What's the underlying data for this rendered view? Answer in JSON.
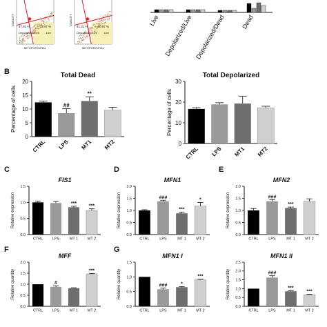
{
  "panel_letters": [
    "B",
    "C",
    "D",
    "E",
    "F",
    "G"
  ],
  "flow_plots": [
    {
      "y_axis_label": "VIABILITY",
      "x_axis_label": "MITOPOTENTIAL",
      "gate_labels": [
        "47.81 %",
        "73.47 %",
        "Depolarized/Live",
        "Live"
      ]
    },
    {
      "y_axis_label": "VIABILITY",
      "x_axis_label": "MITOPOTENTIAL",
      "gate_labels": [
        "41.31 %",
        "60.87 %",
        "Depolarized/Live",
        "Live"
      ]
    }
  ],
  "top_bar_categories": [
    "Live",
    "Depolarized/Live",
    "Depolarized/Dead",
    "Dead"
  ],
  "colors": {
    "ctrl": "#000000",
    "lps": "#9a9a9a",
    "mt1": "#6e6e6e",
    "mt2": "#cfcfcf",
    "gate_line": "#d62020",
    "gate_fill": "#f5f0b5"
  },
  "chart_data": [
    {
      "type": "bar",
      "title": "Total Dead",
      "ylabel": "Percentage of cells",
      "categories": [
        "CTRL",
        "LPS",
        "MT1",
        "MT2"
      ],
      "values": [
        12.4,
        8.5,
        12.9,
        9.6
      ],
      "errors": [
        0.5,
        1.6,
        1.5,
        1.0
      ],
      "significance": [
        "",
        "##",
        "**",
        ""
      ],
      "ylim": [
        0,
        20
      ],
      "yticks": [
        "0",
        "5",
        "10",
        "15",
        "20"
      ]
    },
    {
      "type": "bar",
      "title": "Total Depolarized",
      "ylabel": "Percentage of cells",
      "categories": [
        "CTRL",
        "LPS",
        "MT1",
        "MT2"
      ],
      "values": [
        16.7,
        18.9,
        19.3,
        17.2
      ],
      "errors": [
        0.6,
        0.8,
        3.6,
        0.8
      ],
      "significance": [
        "",
        "",
        "",
        ""
      ],
      "ylim": [
        0,
        30
      ],
      "yticks": [
        "0",
        "10",
        "20",
        "30"
      ]
    },
    {
      "type": "bar",
      "title": "FIS1",
      "ylabel": "Relative expression",
      "categories": [
        "CTRL",
        "LPS",
        "MT 1",
        "MT 2"
      ],
      "values": [
        1.0,
        0.98,
        0.85,
        0.75
      ],
      "errors": [
        0.04,
        0.05,
        0.03,
        0.05
      ],
      "significance": [
        "",
        "",
        "***",
        "***"
      ],
      "ylim": [
        0,
        1.5
      ],
      "yticks": [
        "0.0",
        "0.5",
        "1.0",
        "1.5"
      ]
    },
    {
      "type": "bar",
      "title": "MFN1",
      "ylabel": "Relative expression",
      "categories": [
        "CTRL",
        "LPS",
        "MT 1",
        "MT 2"
      ],
      "values": [
        1.0,
        1.38,
        0.88,
        1.18
      ],
      "errors": [
        0.03,
        0.04,
        0.05,
        0.15
      ],
      "significance": [
        "",
        "###",
        "***",
        "*"
      ],
      "ylim": [
        0,
        2.0
      ],
      "yticks": [
        "0.0",
        "0.5",
        "1.0",
        "1.5",
        "2.0"
      ]
    },
    {
      "type": "bar",
      "title": "MFN2",
      "ylabel": "Relative expression",
      "categories": [
        "CTRL",
        "LPS",
        "MT 1",
        "MT 2"
      ],
      "values": [
        1.0,
        1.38,
        1.1,
        1.38
      ],
      "errors": [
        0.08,
        0.07,
        0.04,
        0.1
      ],
      "significance": [
        "",
        "###",
        "***",
        ""
      ],
      "ylim": [
        0,
        2.0
      ],
      "yticks": [
        "0.0",
        "0.5",
        "1.0",
        "1.5",
        "2.0"
      ]
    },
    {
      "type": "bar",
      "title": "MFF",
      "ylabel": "Relative quantity",
      "categories": [
        "CTRL",
        "LPS",
        "MT 1",
        "MT 2"
      ],
      "values": [
        1.0,
        0.88,
        0.82,
        1.47
      ],
      "errors": [
        0.0,
        0.05,
        0.02,
        0.02
      ],
      "significance": [
        "",
        "#",
        "",
        "***"
      ],
      "ylim": [
        0,
        2.0
      ],
      "yticks": [
        "0.0",
        "0.5",
        "1.0",
        "1.5",
        "2.0"
      ]
    },
    {
      "type": "bar",
      "title": "MFN1 I",
      "ylabel": "Relative quantity",
      "categories": [
        "CTRL",
        "LPS",
        "MT 1",
        "MT 2"
      ],
      "values": [
        1.0,
        0.58,
        0.65,
        0.9
      ],
      "errors": [
        0.0,
        0.04,
        0.02,
        0.02
      ],
      "significance": [
        "",
        "###",
        "*",
        "***"
      ],
      "ylim": [
        0,
        1.5
      ],
      "yticks": [
        "0.0",
        "0.5",
        "1.0",
        "1.5"
      ]
    },
    {
      "type": "bar",
      "title": "MFN1 II",
      "ylabel": "Relative quantity",
      "categories": [
        "CTRL",
        "LPS",
        "MT 1",
        "MT 2"
      ],
      "values": [
        1.0,
        1.63,
        0.85,
        0.65
      ],
      "errors": [
        0.0,
        0.1,
        0.03,
        0.03
      ],
      "significance": [
        "",
        "###",
        "***",
        "***"
      ],
      "ylim": [
        0,
        2.5
      ],
      "yticks": [
        "0.0",
        "0.5",
        "1.0",
        "1.5",
        "2.0",
        "2.5"
      ]
    }
  ]
}
